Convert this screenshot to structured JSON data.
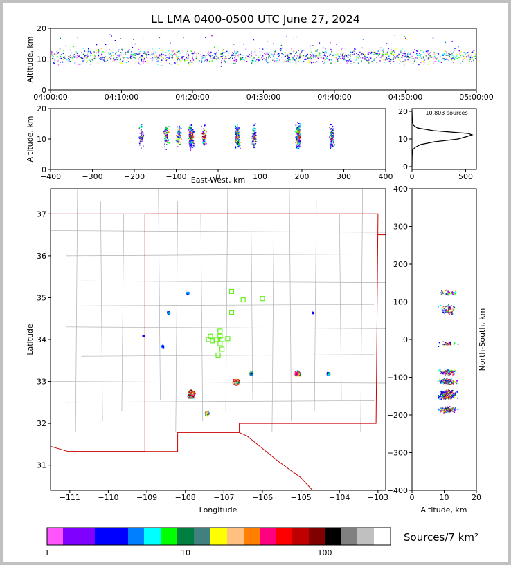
{
  "chart_data": [
    {
      "type": "scatter",
      "panel": "altitude-time",
      "title": "LL LMA 0400-0500 UTC June 27, 2024",
      "ylabel": "Altitude, km",
      "ylim": [
        0,
        20
      ],
      "yticks": [
        "0",
        "10",
        "20"
      ],
      "xticks": [
        "04:00:00",
        "04:10:00",
        "04:20:00",
        "04:30:00",
        "04:40:00",
        "04:50:00",
        "05:00:00"
      ],
      "x_range_min": [
        0,
        60
      ],
      "description_of_data": "continuous sources 04:00-05:00, mostly 7-15 km"
    },
    {
      "type": "scatter",
      "panel": "altitude-eastwest",
      "xlabel": "East-West, km",
      "ylabel": "Altitude, km",
      "xlim": [
        -400,
        400
      ],
      "ylim": [
        0,
        20
      ],
      "xticks": [
        "−400",
        "−300",
        "−200",
        "−100",
        "0",
        "100",
        "200",
        "300",
        "400"
      ],
      "yticks": [
        "0",
        "10",
        "20"
      ],
      "clusters_x_km": [
        -185,
        -125,
        -95,
        -65,
        -35,
        45,
        85,
        190,
        270
      ]
    },
    {
      "type": "line",
      "panel": "altitude-histogram",
      "annotation": "10,803 sources",
      "xlim": [
        0,
        600
      ],
      "ylim": [
        0,
        20
      ],
      "xticks": [
        "0",
        "500"
      ],
      "yticks": [
        "0",
        "10",
        "20"
      ],
      "altitude_km": [
        0,
        4,
        6,
        7,
        8,
        9,
        10,
        11,
        11.5,
        12,
        13,
        14,
        15,
        16,
        17,
        18,
        19,
        20
      ],
      "sources": [
        0,
        1,
        5,
        30,
        80,
        210,
        430,
        520,
        560,
        520,
        200,
        50,
        12,
        6,
        3,
        2,
        1,
        0
      ]
    },
    {
      "type": "map",
      "panel": "plan-view",
      "xlabel": "Longitude",
      "ylabel": "Latitude",
      "xlim": [
        -111.5,
        -102.8
      ],
      "ylim": [
        30.4,
        37.6
      ],
      "xticks": [
        "−111",
        "−110",
        "−109",
        "−108",
        "−107",
        "−106",
        "−105",
        "−104",
        "−103"
      ],
      "yticks": [
        "31",
        "32",
        "33",
        "34",
        "35",
        "36",
        "37"
      ],
      "stations": [
        {
          "lon": -106.8,
          "lat": 35.15
        },
        {
          "lon": -106.5,
          "lat": 34.95
        },
        {
          "lon": -106.0,
          "lat": 34.98
        },
        {
          "lon": -106.8,
          "lat": 34.65
        },
        {
          "lon": -107.35,
          "lat": 34.08
        },
        {
          "lon": -107.4,
          "lat": 34.0
        },
        {
          "lon": -107.2,
          "lat": 34.0
        },
        {
          "lon": -107.05,
          "lat": 34.0
        },
        {
          "lon": -106.9,
          "lat": 34.02
        },
        {
          "lon": -107.1,
          "lat": 34.2
        },
        {
          "lon": -107.1,
          "lat": 34.08
        },
        {
          "lon": -107.1,
          "lat": 33.9
        },
        {
          "lon": -107.05,
          "lat": 33.77
        },
        {
          "lon": -107.15,
          "lat": 33.63
        },
        {
          "lon": -107.3,
          "lat": 33.97
        }
      ],
      "clusters": [
        {
          "lon": -107.85,
          "lat": 32.7,
          "size": 1.0
        },
        {
          "lon": -107.45,
          "lat": 32.25,
          "size": 0.6
        },
        {
          "lon": -106.7,
          "lat": 33.0,
          "size": 0.8
        },
        {
          "lon": -106.3,
          "lat": 33.2,
          "size": 0.5
        },
        {
          "lon": -105.1,
          "lat": 33.2,
          "size": 0.7
        },
        {
          "lon": -104.3,
          "lat": 33.2,
          "size": 0.4
        },
        {
          "lon": -108.45,
          "lat": 34.65,
          "size": 0.4
        },
        {
          "lon": -107.95,
          "lat": 35.12,
          "size": 0.3
        },
        {
          "lon": -108.6,
          "lat": 33.85,
          "size": 0.3
        },
        {
          "lon": -109.1,
          "lat": 34.1,
          "size": 0.2
        },
        {
          "lon": -104.7,
          "lat": 34.65,
          "size": 0.2
        }
      ]
    },
    {
      "type": "scatter",
      "panel": "northsouth-altitude",
      "xlabel": "Altitude, km",
      "ylabel": "North-South, km",
      "xlim": [
        0,
        20
      ],
      "ylim": [
        -400,
        400
      ],
      "xticks": [
        "0",
        "10",
        "20"
      ],
      "yticks": [
        "−400",
        "−300",
        "−200",
        "−100",
        "0",
        "100",
        "200",
        "300",
        "400"
      ],
      "clusters_ns_km": [
        125,
        85,
        75,
        -10,
        -85,
        -110,
        -140,
        -150,
        -185
      ]
    },
    {
      "type": "colorbar",
      "label": "Sources/7 km²",
      "tick_labels": [
        "1",
        "10",
        "100"
      ],
      "colors": [
        "#ff55ff",
        "#8000ff",
        "#8000ff",
        "#0000ff",
        "#0000ff",
        "#0080ff",
        "#00ffff",
        "#00ff00",
        "#008040",
        "#408080",
        "#ffff00",
        "#ffc080",
        "#ff8000",
        "#ff0080",
        "#ff0000",
        "#c00000",
        "#800000",
        "#000000",
        "#808080",
        "#c0c0c0",
        "#ffffff"
      ]
    }
  ],
  "colors": {
    "state_border": "#cc0000",
    "county_border": "#b0b0b0",
    "station": "#66ee22"
  }
}
